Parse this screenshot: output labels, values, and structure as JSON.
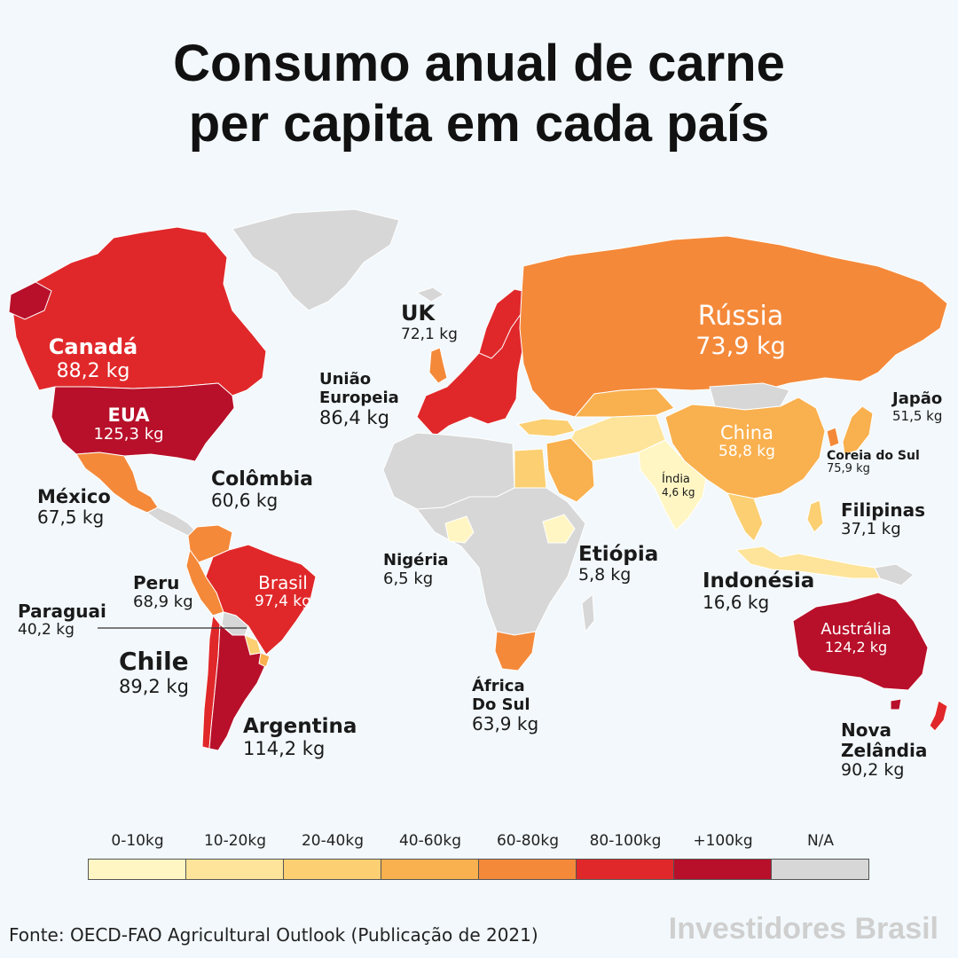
{
  "title_line1": "Consumo anual de carne",
  "title_line2": "per capita em cada país",
  "colors": {
    "c0_10": "#fff6c4",
    "c10_20": "#fde49a",
    "c20_40": "#fbcf72",
    "c40_60": "#f9b04e",
    "c60_80": "#f4893a",
    "c80_100": "#e0282a",
    "c100": "#b8102a",
    "na": "#d7d7d7"
  },
  "countries": {
    "canada": {
      "name": "Canadá",
      "value": "88,2 kg"
    },
    "eua": {
      "name": "EUA",
      "value": "125,3 kg"
    },
    "mexico": {
      "name": "México",
      "value": "67,5 kg"
    },
    "colombia": {
      "name": "Colômbia",
      "value": "60,6 kg"
    },
    "peru": {
      "name": "Peru",
      "value": "68,9 kg"
    },
    "brasil": {
      "name": "Brasil",
      "value": "97,4 kg"
    },
    "paraguai": {
      "name": "Paraguai",
      "value": "40,2 kg"
    },
    "chile": {
      "name": "Chile",
      "value": "89,2 kg"
    },
    "argentina": {
      "name": "Argentina",
      "value": "114,2 kg"
    },
    "uk": {
      "name": "UK",
      "value": "72,1 kg"
    },
    "ue_line1": "União",
    "ue_line2": "Europeia",
    "ue": {
      "value": "86,4 kg"
    },
    "russia": {
      "name": "Rússia",
      "value": "73,9 kg"
    },
    "japao": {
      "name": "Japão",
      "value": "51,5 kg"
    },
    "china": {
      "name": "China",
      "value": "58,8 kg"
    },
    "coreia": {
      "name": "Coreia do Sul",
      "value": "75,9 kg"
    },
    "india": {
      "name": "Índia",
      "value": "4,6 kg"
    },
    "filipinas": {
      "name": "Filipinas",
      "value": "37,1 kg"
    },
    "nigeria": {
      "name": "Nigéria",
      "value": "6,5 kg"
    },
    "etiopia": {
      "name": "Etiópia",
      "value": "5,8 kg"
    },
    "indonesia": {
      "name": "Indonésia",
      "value": "16,6 kg"
    },
    "africa_line1": "África",
    "africa_line2": "Do Sul",
    "africa": {
      "value": "63,9 kg"
    },
    "australia": {
      "name": "Austrália",
      "value": "124,2 kg"
    },
    "nz_line1": "Nova",
    "nz_line2": "Zelândia",
    "nz": {
      "value": "90,2 kg"
    }
  },
  "legend": [
    {
      "label": "0-10kg",
      "color": "#fff6c4"
    },
    {
      "label": "10-20kg",
      "color": "#fde49a"
    },
    {
      "label": "20-40kg",
      "color": "#fbcf72"
    },
    {
      "label": "40-60kg",
      "color": "#f9b04e"
    },
    {
      "label": "60-80kg",
      "color": "#f4893a"
    },
    {
      "label": "80-100kg",
      "color": "#e0282a"
    },
    {
      "label": "+100kg",
      "color": "#b8102a"
    },
    {
      "label": "N/A",
      "color": "#d7d7d7"
    }
  ],
  "source": "Fonte: OECD-FAO Agricultural Outlook (Publicação de 2021)",
  "brand": "Investidores Brasil"
}
